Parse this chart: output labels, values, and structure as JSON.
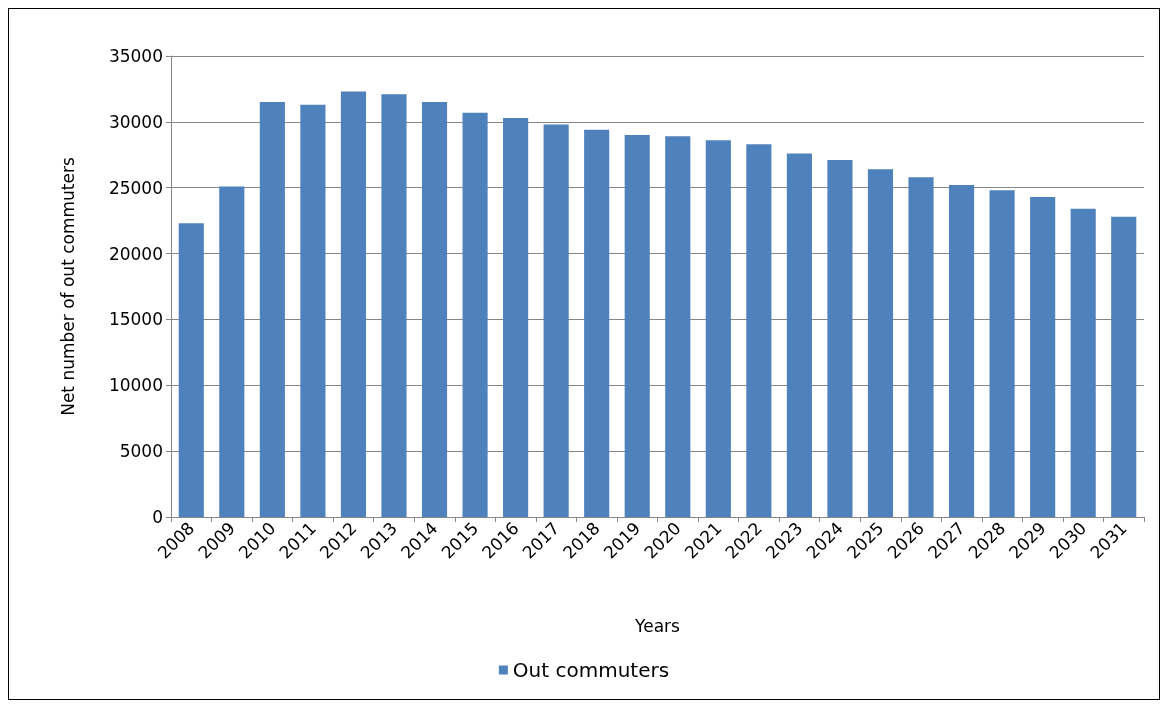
{
  "chart_data": {
    "type": "bar",
    "xlabel": "Years",
    "ylabel": "Net number of out commuters",
    "categories": [
      "2008",
      "2009",
      "2010",
      "2011",
      "2012",
      "2013",
      "2014",
      "2015",
      "2016",
      "2017",
      "2018",
      "2019",
      "2020",
      "2021",
      "2022",
      "2023",
      "2024",
      "2025",
      "2026",
      "2027",
      "2028",
      "2029",
      "2030",
      "2031"
    ],
    "series": [
      {
        "name": "Out commuters",
        "color": "#4f81bd",
        "values": [
          22300,
          25100,
          31500,
          31300,
          32300,
          32100,
          31500,
          30700,
          30300,
          29800,
          29400,
          29000,
          28900,
          28600,
          28300,
          27600,
          27100,
          26400,
          25800,
          25200,
          24800,
          24300,
          23400,
          22800
        ]
      }
    ],
    "ylim": [
      0,
      35000
    ],
    "yticks": [
      0,
      5000,
      10000,
      15000,
      20000,
      25000,
      30000,
      35000
    ],
    "grid": "y",
    "legend": "bottom"
  }
}
